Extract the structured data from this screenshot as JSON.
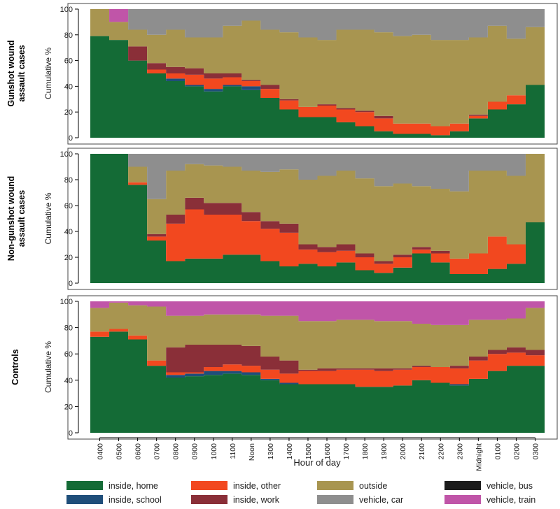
{
  "chart_data": {
    "type": "area",
    "x_label": "Hour of day",
    "y_label": "Cumulative %",
    "ylim": [
      0,
      100
    ],
    "y_ticks": [
      0,
      20,
      40,
      60,
      80,
      100
    ],
    "categories": [
      "0400",
      "0500",
      "0600",
      "0700",
      "0800",
      "0900",
      "1000",
      "1100",
      "Noon",
      "1300",
      "1400",
      "1500",
      "1600",
      "1700",
      "1800",
      "1900",
      "2000",
      "2100",
      "2200",
      "2300",
      "Midnight",
      "0100",
      "0200",
      "0300"
    ],
    "legend": [
      {
        "key": "home",
        "label": "inside, home",
        "color": "#146b36"
      },
      {
        "key": "school",
        "label": "inside, school",
        "color": "#1f4e7a"
      },
      {
        "key": "other",
        "label": "inside, other",
        "color": "#f2481f"
      },
      {
        "key": "work",
        "label": "inside, work",
        "color": "#8a2f38"
      },
      {
        "key": "outside",
        "label": "outside",
        "color": "#a89550"
      },
      {
        "key": "car",
        "label": "vehicle, car",
        "color": "#8e8e8e"
      },
      {
        "key": "bus",
        "label": "vehicle, bus",
        "color": "#1c1c1c"
      },
      {
        "key": "train",
        "label": "vehicle, train",
        "color": "#c055a8"
      }
    ],
    "panels": [
      {
        "label": "Gunshot wound\nassault cases",
        "cumulative": {
          "home": [
            79,
            76,
            60,
            50,
            44,
            40,
            36,
            40,
            37,
            31,
            22,
            16,
            16,
            12,
            9,
            5,
            3,
            3,
            2,
            5,
            15,
            22,
            26,
            41
          ],
          "school": [
            79,
            76,
            60,
            50,
            46,
            41,
            38,
            41,
            40,
            31,
            22,
            16,
            16,
            12,
            9,
            5,
            3,
            3,
            2,
            5,
            15,
            22,
            26,
            41
          ],
          "other": [
            79,
            76,
            60,
            53,
            50,
            49,
            46,
            47,
            44,
            38,
            29,
            24,
            25,
            22,
            20,
            15,
            11,
            11,
            9,
            11,
            17,
            28,
            33,
            41
          ],
          "work": [
            79,
            76,
            71,
            58,
            55,
            54,
            50,
            50,
            45,
            41,
            30,
            24,
            26,
            23,
            21,
            17,
            11,
            11,
            9,
            11,
            18,
            28,
            33,
            41
          ],
          "outside": [
            100,
            90,
            84,
            80,
            84,
            78,
            78,
            87,
            91,
            84,
            82,
            78,
            76,
            84,
            84,
            82,
            79,
            80,
            76,
            76,
            78,
            87,
            77,
            86
          ],
          "car": [
            100,
            90,
            100,
            100,
            100,
            100,
            100,
            100,
            100,
            100,
            100,
            100,
            100,
            100,
            100,
            100,
            100,
            100,
            100,
            100,
            100,
            100,
            100,
            100
          ],
          "bus": [
            100,
            90,
            100,
            100,
            100,
            100,
            100,
            100,
            100,
            100,
            100,
            100,
            100,
            100,
            100,
            100,
            100,
            100,
            100,
            100,
            100,
            100,
            100,
            100
          ],
          "train": [
            100,
            100,
            100,
            100,
            100,
            100,
            100,
            100,
            100,
            100,
            100,
            100,
            100,
            100,
            100,
            100,
            100,
            100,
            100,
            100,
            100,
            100,
            100,
            100
          ]
        }
      },
      {
        "label": "Non-gunshot wound\nassault cases",
        "cumulative": {
          "home": [
            100,
            100,
            76,
            33,
            17,
            19,
            19,
            22,
            22,
            17,
            13,
            15,
            13,
            16,
            10,
            8,
            12,
            23,
            16,
            7,
            7,
            11,
            15,
            47
          ],
          "school": [
            100,
            100,
            76,
            33,
            17,
            19,
            19,
            22,
            22,
            17,
            13,
            15,
            13,
            16,
            10,
            8,
            12,
            23,
            16,
            7,
            7,
            11,
            15,
            47
          ],
          "other": [
            100,
            100,
            78,
            36,
            46,
            57,
            53,
            53,
            48,
            42,
            39,
            26,
            24,
            25,
            20,
            15,
            20,
            26,
            23,
            19,
            23,
            36,
            30,
            47
          ],
          "work": [
            100,
            100,
            78,
            38,
            53,
            66,
            62,
            62,
            55,
            48,
            46,
            30,
            28,
            30,
            23,
            17,
            22,
            28,
            25,
            19,
            23,
            36,
            30,
            47
          ],
          "outside": [
            100,
            100,
            90,
            65,
            87,
            92,
            91,
            90,
            87,
            86,
            88,
            80,
            83,
            87,
            81,
            75,
            77,
            75,
            73,
            71,
            87,
            87,
            83,
            100
          ],
          "car": [
            100,
            100,
            100,
            100,
            100,
            100,
            100,
            100,
            100,
            100,
            100,
            100,
            100,
            100,
            100,
            100,
            100,
            100,
            100,
            100,
            100,
            100,
            100,
            100
          ],
          "bus": [
            100,
            100,
            100,
            100,
            100,
            100,
            100,
            100,
            100,
            100,
            100,
            100,
            100,
            100,
            100,
            100,
            100,
            100,
            100,
            100,
            100,
            100,
            100,
            100
          ],
          "train": [
            100,
            100,
            100,
            100,
            100,
            100,
            100,
            100,
            100,
            100,
            100,
            100,
            100,
            100,
            100,
            100,
            100,
            100,
            100,
            100,
            100,
            100,
            100,
            100
          ]
        }
      },
      {
        "label": "Controls",
        "cumulative": {
          "home": [
            73,
            77,
            71,
            51,
            42,
            43,
            44,
            45,
            44,
            40,
            37,
            37,
            37,
            37,
            35,
            35,
            36,
            40,
            38,
            36,
            41,
            47,
            51,
            51
          ],
          "school": [
            73,
            77,
            71,
            51,
            44,
            45,
            47,
            47,
            46,
            41,
            38,
            37,
            37,
            37,
            35,
            35,
            36,
            40,
            38,
            37,
            41,
            47,
            51,
            51
          ],
          "other": [
            77,
            79,
            74,
            55,
            46,
            46,
            50,
            52,
            51,
            48,
            45,
            47,
            47,
            48,
            48,
            47,
            48,
            50,
            50,
            49,
            55,
            60,
            61,
            59
          ],
          "work": [
            77,
            79,
            74,
            55,
            65,
            67,
            67,
            67,
            66,
            58,
            55,
            48,
            49,
            49,
            49,
            49,
            49,
            51,
            50,
            51,
            58,
            63,
            65,
            63
          ],
          "outside": [
            95,
            99,
            97,
            96,
            89,
            89,
            90,
            90,
            90,
            89,
            89,
            85,
            85,
            86,
            86,
            85,
            85,
            83,
            82,
            82,
            86,
            86,
            87,
            95
          ],
          "car": [
            95,
            99,
            97,
            96,
            89,
            89,
            90,
            90,
            90,
            89,
            89,
            85,
            85,
            86,
            86,
            85,
            85,
            83,
            82,
            82,
            86,
            86,
            87,
            95
          ],
          "bus": [
            95,
            99,
            97,
            96,
            89,
            89,
            90,
            90,
            90,
            89,
            89,
            85,
            85,
            86,
            86,
            85,
            85,
            83,
            82,
            82,
            86,
            86,
            87,
            95
          ],
          "train": [
            100,
            100,
            100,
            100,
            100,
            100,
            100,
            100,
            100,
            100,
            100,
            100,
            100,
            100,
            100,
            100,
            100,
            100,
            100,
            100,
            100,
            100,
            100,
            100
          ]
        }
      }
    ]
  }
}
